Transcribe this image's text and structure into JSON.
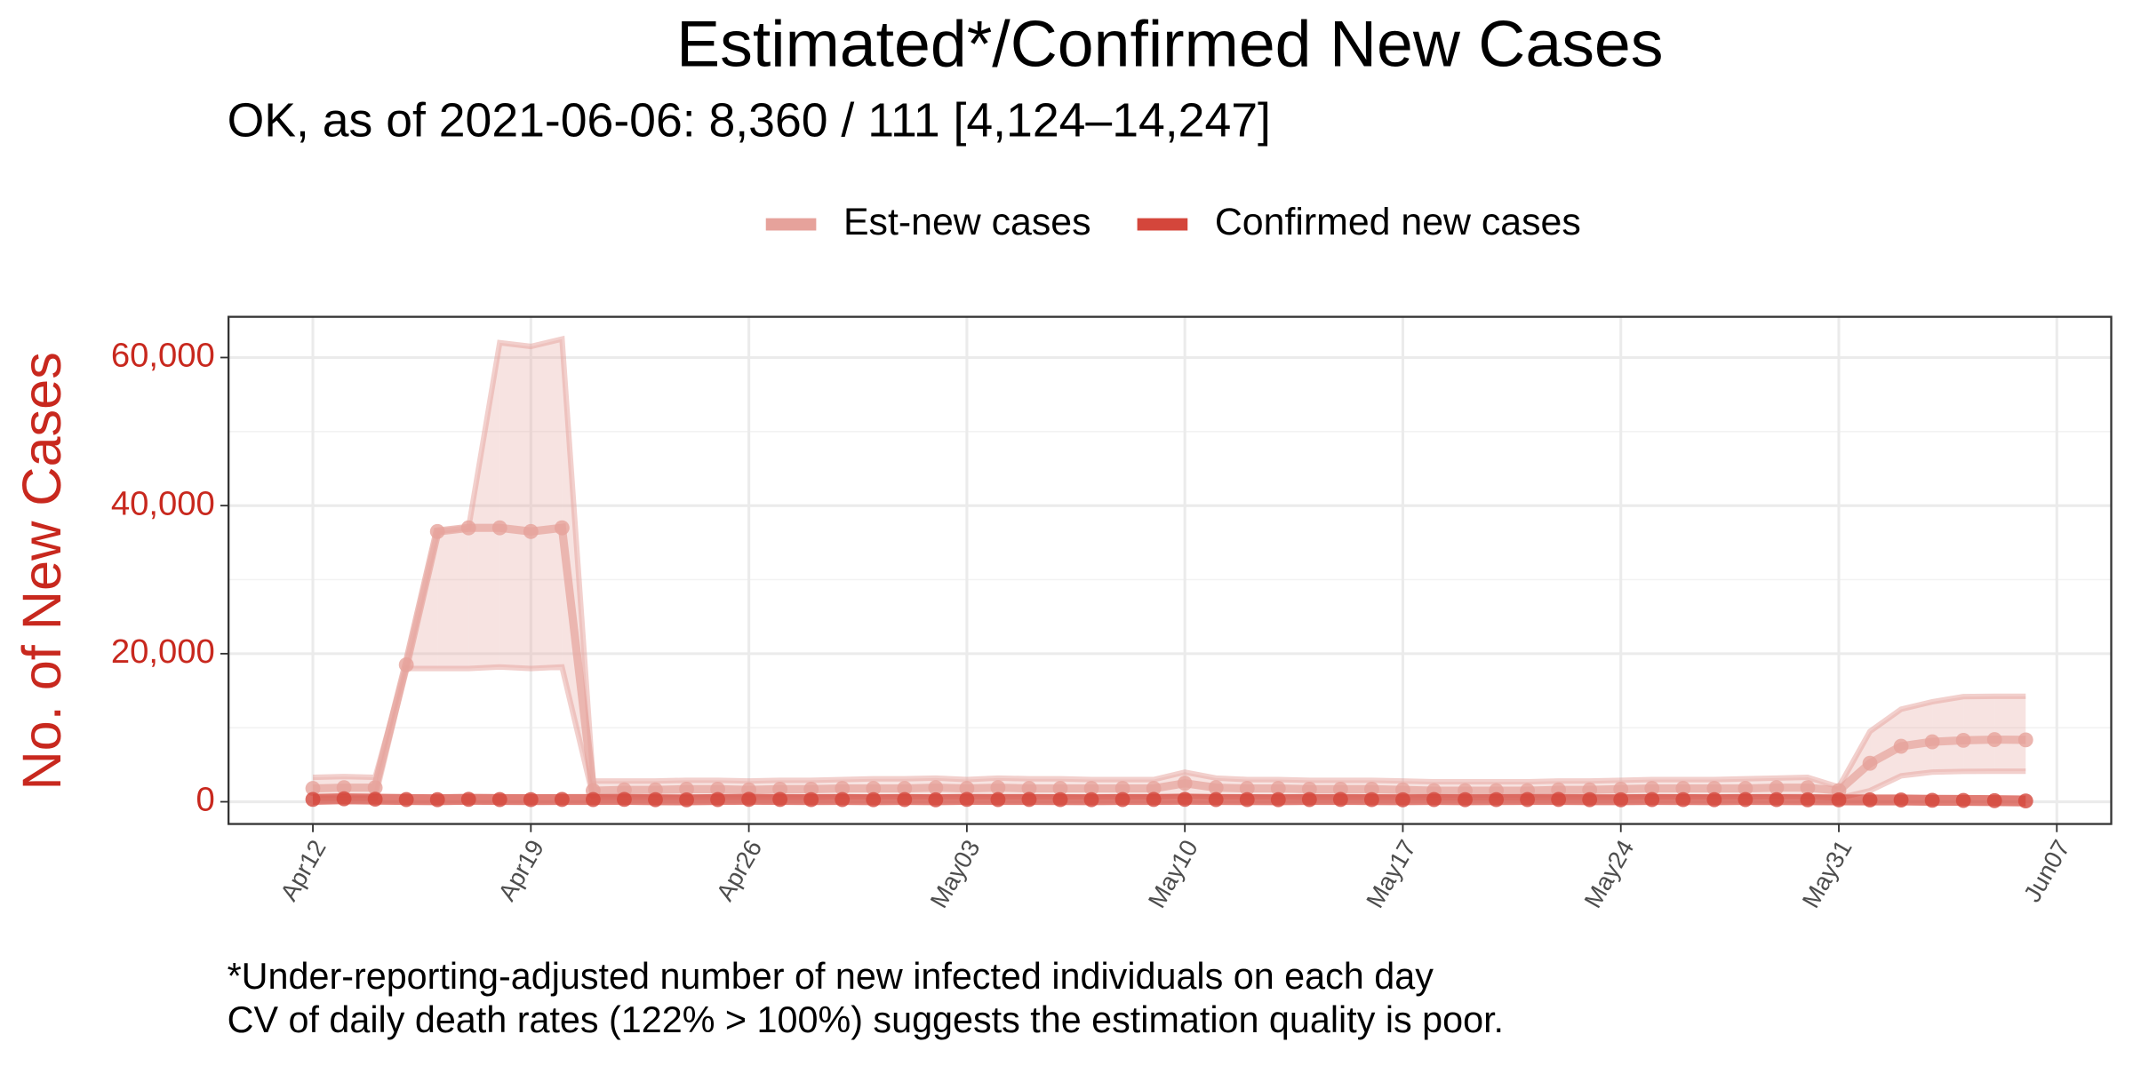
{
  "chart_data": {
    "type": "line",
    "title": "Estimated*/Confirmed New Cases",
    "subtitle": "OK, as of 2021-06-06: 8,360 / 111 [4,124–14,247]",
    "y_label": "No. of New Cases",
    "notes": [
      "*Under-reporting-adjusted number of new infected individuals on each day",
      "CV of daily death rates (122% > 100%) suggests the estimation quality is poor."
    ],
    "x": [
      "Apr12",
      "Apr13",
      "Apr14",
      "Apr15",
      "Apr16",
      "Apr17",
      "Apr18",
      "Apr19",
      "Apr20",
      "Apr21",
      "Apr22",
      "Apr23",
      "Apr24",
      "Apr25",
      "Apr26",
      "Apr27",
      "Apr28",
      "Apr29",
      "Apr30",
      "May01",
      "May02",
      "May03",
      "May04",
      "May05",
      "May06",
      "May07",
      "May08",
      "May09",
      "May10",
      "May11",
      "May12",
      "May13",
      "May14",
      "May15",
      "May16",
      "May17",
      "May18",
      "May19",
      "May20",
      "May21",
      "May22",
      "May23",
      "May24",
      "May25",
      "May26",
      "May27",
      "May28",
      "May29",
      "May30",
      "May31",
      "Jun01",
      "Jun02",
      "Jun03",
      "Jun04",
      "Jun05",
      "Jun06"
    ],
    "series": [
      {
        "name": "Est-new cases",
        "color": "#e6a29b",
        "values": [
          1800,
          1900,
          1900,
          18500,
          36500,
          37000,
          37000,
          36500,
          37000,
          1500,
          1600,
          1600,
          1700,
          1700,
          1600,
          1700,
          1700,
          1800,
          1800,
          1800,
          1900,
          1800,
          1900,
          1800,
          1800,
          1800,
          1800,
          1800,
          2500,
          1900,
          1800,
          1800,
          1700,
          1700,
          1700,
          1600,
          1500,
          1500,
          1500,
          1500,
          1600,
          1600,
          1700,
          1800,
          1800,
          1800,
          1800,
          1900,
          1900,
          1500,
          5200,
          7500,
          8100,
          8300,
          8400,
          8360
        ],
        "lower": [
          500,
          500,
          500,
          18000,
          18000,
          18000,
          18200,
          18000,
          18200,
          600,
          600,
          600,
          600,
          600,
          600,
          600,
          600,
          650,
          650,
          650,
          650,
          650,
          650,
          650,
          650,
          650,
          650,
          650,
          800,
          650,
          650,
          650,
          600,
          600,
          600,
          600,
          550,
          550,
          550,
          550,
          600,
          600,
          600,
          650,
          650,
          650,
          650,
          700,
          700,
          500,
          1500,
          3500,
          4000,
          4100,
          4124,
          4124
        ],
        "upper": [
          3300,
          3400,
          3300,
          18500,
          36500,
          37000,
          62000,
          61500,
          62500,
          2800,
          2800,
          2800,
          2900,
          2900,
          2800,
          2900,
          2900,
          3000,
          3100,
          3100,
          3200,
          3000,
          3200,
          3100,
          3100,
          3000,
          3000,
          3000,
          4000,
          3200,
          3000,
          3000,
          2900,
          2900,
          2900,
          2800,
          2700,
          2700,
          2700,
          2700,
          2800,
          2800,
          2900,
          3000,
          3000,
          3000,
          3100,
          3200,
          3300,
          2000,
          9500,
          12500,
          13500,
          14200,
          14247,
          14247
        ]
      },
      {
        "name": "Confirmed new cases",
        "color": "#d4463b",
        "values": [
          320,
          400,
          350,
          300,
          280,
          330,
          300,
          290,
          310,
          300,
          320,
          280,
          260,
          300,
          330,
          310,
          290,
          300,
          280,
          300,
          270,
          320,
          300,
          310,
          290,
          280,
          300,
          310,
          330,
          300,
          290,
          280,
          300,
          310,
          290,
          270,
          300,
          280,
          290,
          300,
          310,
          280,
          270,
          300,
          290,
          280,
          300,
          290,
          270,
          260,
          250,
          240,
          200,
          180,
          150,
          111
        ]
      }
    ],
    "xticks": [
      "Apr12",
      "Apr19",
      "Apr26",
      "May03",
      "May10",
      "May17",
      "May24",
      "May31",
      "Jun07"
    ],
    "ylim": [
      -3000,
      65500
    ],
    "yticks": [
      0,
      {
        "value": 20000,
        "label": "20,000"
      },
      {
        "value": 40000,
        "label": "40,000"
      },
      {
        "value": 60000,
        "label": "60,000"
      }
    ],
    "grid": true,
    "legend": "top"
  }
}
